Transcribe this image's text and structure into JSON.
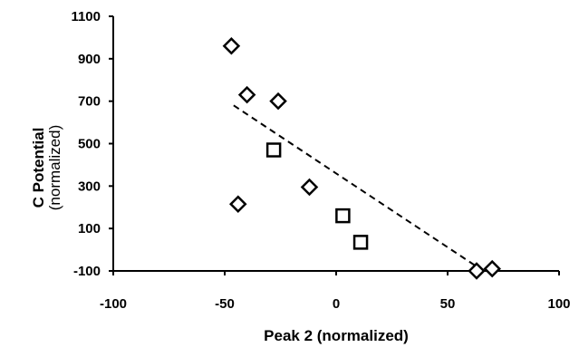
{
  "chart_data": {
    "type": "scatter",
    "xlabel": "Peak 2 (normalized)",
    "ylabel": "C Potential",
    "ylabel_sub": "(normalized)",
    "xlim": [
      -100,
      100
    ],
    "ylim": [
      -100,
      1100
    ],
    "x_ticks": [
      -100,
      -50,
      0,
      50,
      100
    ],
    "y_ticks": [
      -100,
      100,
      300,
      500,
      700,
      900,
      1100
    ],
    "x_tick_labels": [
      "-100",
      "-50",
      "0",
      "50",
      "100"
    ],
    "y_tick_labels": [
      "-100",
      "100",
      "300",
      "500",
      "700",
      "900",
      "1100"
    ],
    "grid": false,
    "legend": "none",
    "series": [
      {
        "marker": "diamond",
        "x": [
          -47,
          -40,
          -26,
          -44,
          -12,
          63,
          70
        ],
        "y": [
          960,
          730,
          700,
          215,
          295,
          -100,
          -90
        ]
      },
      {
        "marker": "square",
        "x": [
          -28,
          3,
          11
        ],
        "y": [
          470,
          160,
          35
        ]
      }
    ],
    "trendline": {
      "style": "dashed",
      "x": [
        -46,
        66
      ],
      "y": [
        680,
        -100
      ]
    }
  }
}
